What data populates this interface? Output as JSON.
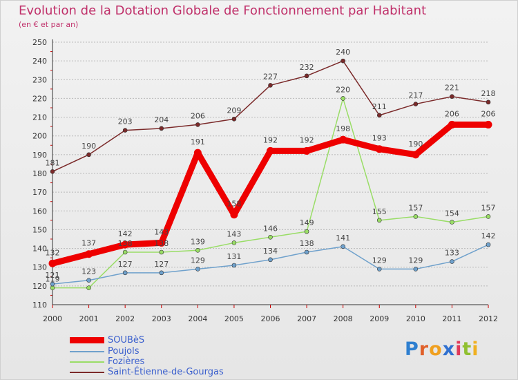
{
  "header": {
    "title": "Evolution de la Dotation Globale de Fonctionnement par Habitant",
    "subtitle": "(en € et par an)"
  },
  "colors": {
    "title": "#c0306a",
    "grid": "#b9b9b9",
    "axis": "#333333",
    "ticks": "#cc0000"
  },
  "logo": {
    "letters": [
      "P",
      "r",
      "o",
      "x",
      "i",
      "t",
      "i"
    ],
    "colors": [
      "#2e7fd0",
      "#e0602a",
      "#f0a020",
      "#3070d0",
      "#e03a5a",
      "#90c030",
      "#f0b020"
    ]
  },
  "chart_data": {
    "type": "line",
    "title": "Evolution de la Dotation Globale de Fonctionnement par Habitant",
    "subtitle": "(en € et par an)",
    "xlabel": "",
    "ylabel": "",
    "x": [
      "2000",
      "2001",
      "2002",
      "2003",
      "2004",
      "2005",
      "2006",
      "2007",
      "2008",
      "2009",
      "2010",
      "2011",
      "2012"
    ],
    "ylim": [
      110,
      250
    ],
    "yticks": [
      110,
      120,
      130,
      140,
      150,
      160,
      170,
      180,
      190,
      200,
      210,
      220,
      230,
      240,
      250
    ],
    "grid": "horizontal",
    "legend_position": "bottom-left",
    "series": [
      {
        "name": "Saint-Étienne-de-Gourgas",
        "color": "#7b2a2a",
        "values": [
          181,
          190,
          203,
          204,
          206,
          209,
          227,
          232,
          240,
          211,
          217,
          221,
          218
        ],
        "labels": [
          "181",
          "190",
          "203",
          "204",
          "206",
          "209",
          "227",
          "232",
          "240",
          "211",
          "217",
          "221",
          "218"
        ]
      },
      {
        "name": "Fozières",
        "color": "#99dd66",
        "values": [
          119,
          119,
          138,
          138,
          139,
          143,
          146,
          149,
          220,
          155,
          157,
          154,
          157
        ],
        "labels": [
          "119",
          "",
          "138",
          "138",
          "139",
          "143",
          "146",
          "149",
          "220",
          "155",
          "157",
          "154",
          "157"
        ]
      },
      {
        "name": "Poujols",
        "color": "#6fa1cc",
        "values": [
          121,
          123,
          127,
          127,
          129,
          131,
          134,
          138,
          141,
          129,
          129,
          133,
          142
        ],
        "labels": [
          "121",
          "123",
          "127",
          "127",
          "129",
          "131",
          "134",
          "138",
          "141",
          "129",
          "129",
          "133",
          "142"
        ]
      },
      {
        "name": "SOUBèS",
        "color": "#ee0000",
        "values": [
          132,
          137,
          142,
          143,
          191,
          158,
          192,
          192,
          198,
          193,
          190,
          206,
          206
        ],
        "labels": [
          "132",
          "137",
          "142",
          "143",
          "191",
          "158",
          "192",
          "192",
          "198",
          "193",
          "190",
          "206",
          "206"
        ]
      }
    ]
  },
  "legend": {
    "items": [
      {
        "label": "SOUBèS",
        "color": "#ee0000",
        "thickness": 9
      },
      {
        "label": "Poujols",
        "color": "#6fa1cc",
        "thickness": 2
      },
      {
        "label": "Fozières",
        "color": "#99dd66",
        "thickness": 2
      },
      {
        "label": "Saint-Étienne-de-Gourgas",
        "color": "#7b2a2a",
        "thickness": 2
      }
    ]
  }
}
